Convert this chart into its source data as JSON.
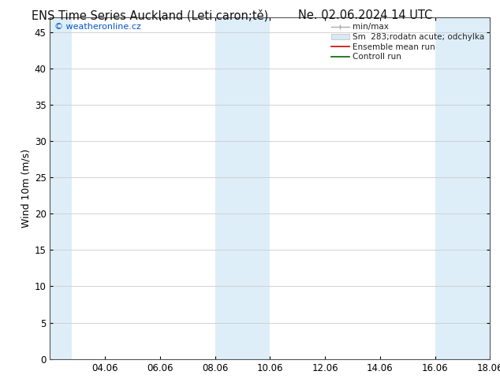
{
  "title_left": "ENS Time Series Auckland (Leti caron;tě)",
  "title_right": "Ne. 02.06.2024 14 UTC",
  "ylabel": "Wind 10m (m/s)",
  "watermark": "© weatheronline.cz",
  "xlim_start": 0,
  "xlim_end": 16,
  "ylim": [
    0,
    47
  ],
  "yticks": [
    0,
    5,
    10,
    15,
    20,
    25,
    30,
    35,
    40,
    45
  ],
  "xtick_labels": [
    "04.06",
    "06.06",
    "08.06",
    "10.06",
    "12.06",
    "14.06",
    "16.06",
    "18.06"
  ],
  "xtick_positions": [
    2,
    4,
    6,
    8,
    10,
    12,
    14,
    16
  ],
  "shaded_regions": [
    {
      "xmin": 0.0,
      "xmax": 0.8,
      "color": "#ddeef9"
    },
    {
      "xmin": 6.0,
      "xmax": 8.0,
      "color": "#ddeef9"
    },
    {
      "xmin": 14.0,
      "xmax": 16.0,
      "color": "#ddeef9"
    }
  ],
  "legend_entries": [
    {
      "label": "min/max",
      "color": "#aaaaaa",
      "lw": 1.0,
      "style": "minmax"
    },
    {
      "label": "Sm  283;rodatn acute; odchylka",
      "color": "#d8e8f5",
      "lw": 8,
      "style": "band"
    },
    {
      "label": "Ensemble mean run",
      "color": "#cc0000",
      "lw": 1.2,
      "style": "line"
    },
    {
      "label": "Controll run",
      "color": "#006600",
      "lw": 1.2,
      "style": "line"
    }
  ],
  "bg_color": "#ffffff",
  "plot_bg_color": "#ffffff",
  "grid_color": "#cccccc",
  "title_fontsize": 10.5,
  "tick_fontsize": 8.5,
  "ylabel_fontsize": 9,
  "watermark_color": "#0055cc",
  "watermark_fontsize": 8
}
